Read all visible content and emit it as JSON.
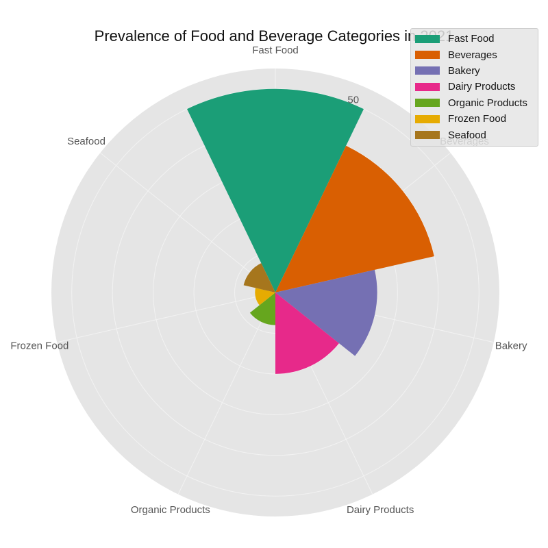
{
  "chart_data": {
    "type": "polar-bar",
    "title": "Prevalence of Food and Beverage Categories in 2021",
    "categories": [
      "Fast Food",
      "Beverages",
      "Bakery",
      "Dairy Products",
      "Organic Products",
      "Frozen Food",
      "Seafood"
    ],
    "values": [
      50,
      40,
      25,
      20,
      8,
      5,
      8
    ],
    "rlim": [
      0,
      55
    ],
    "r_tick_labels": [
      "50"
    ],
    "colors": [
      "#1b9e77",
      "#d95f02",
      "#7570b3",
      "#e7298a",
      "#66a61e",
      "#e6ab02",
      "#a6761d"
    ],
    "legend": {
      "position": "top-right",
      "entries": [
        "Fast Food",
        "Beverages",
        "Bakery",
        "Dairy Products",
        "Organic Products",
        "Frozen Food",
        "Seafood"
      ]
    },
    "grid": true
  }
}
